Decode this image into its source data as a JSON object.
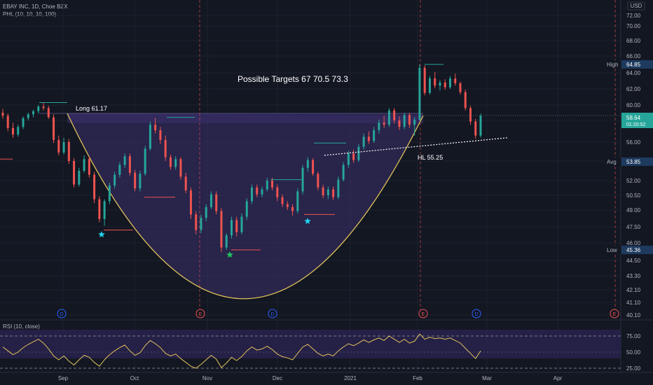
{
  "header": {
    "symbol": "EBAY INC, 1D, Choe BZX",
    "indicator": "PHL (10, 10, 10, 100)",
    "currency": "USD"
  },
  "rsi_label": "RSI (10, close)",
  "colors": {
    "background": "#131722",
    "up": "#26a69a",
    "down": "#ef5350",
    "cup": "#e2c35a",
    "cup_fill": "#3b2f6b",
    "rsi_line": "#e2c35a",
    "rsi_band": "#2a2350"
  },
  "chart_data": {
    "type": "candlestick",
    "xlabels": [
      "Sep",
      "Oct",
      "Nov",
      "Dec",
      "2021",
      "Feb",
      "Mar",
      "Apr"
    ],
    "ylim": [
      40,
      72.5
    ],
    "yticks": [
      "72.00",
      "70.00",
      "68.00",
      "66.00",
      "64.00",
      "62.00",
      "60.00",
      "58.00",
      "56.00",
      "54.00",
      "52.00",
      "50.50",
      "49.00",
      "47.50",
      "46.00",
      "44.50",
      "43.30",
      "42.10",
      "41.10",
      "40.10"
    ],
    "price_labels": {
      "high": {
        "text": "High",
        "value": "64.85"
      },
      "last": {
        "value": "58.64",
        "countdown": "01:20:52"
      },
      "avg": {
        "text": "Avg",
        "value": "53.85"
      },
      "low": {
        "text": "Low",
        "value": "45.36"
      }
    },
    "annotations": {
      "targets": "Possible Targets  67   70.5  73.3",
      "long": "Long 61.17",
      "hl": "HL 55.25"
    },
    "events": [
      "D",
      "E",
      "D",
      "E",
      "D",
      "E"
    ],
    "candles": [
      [
        59.0,
        59.5,
        58.2,
        58.6
      ],
      [
        58.6,
        58.9,
        57.0,
        57.3
      ],
      [
        57.3,
        57.8,
        56.4,
        56.7
      ],
      [
        56.7,
        57.6,
        56.5,
        57.4
      ],
      [
        57.4,
        58.5,
        57.2,
        58.3
      ],
      [
        58.3,
        59.0,
        58.0,
        58.8
      ],
      [
        58.8,
        59.4,
        58.4,
        59.2
      ],
      [
        59.2,
        60.0,
        58.9,
        59.8
      ],
      [
        59.8,
        60.3,
        59.3,
        59.6
      ],
      [
        59.6,
        59.9,
        58.2,
        58.4
      ],
      [
        58.4,
        58.8,
        55.9,
        56.2
      ],
      [
        56.2,
        56.6,
        54.6,
        54.9
      ],
      [
        54.9,
        56.4,
        54.7,
        56.0
      ],
      [
        56.0,
        56.3,
        53.7,
        54.0
      ],
      [
        54.0,
        54.3,
        51.3,
        51.6
      ],
      [
        51.6,
        53.3,
        51.4,
        53.0
      ],
      [
        53.0,
        54.6,
        52.8,
        54.2
      ],
      [
        54.2,
        54.5,
        52.3,
        52.6
      ],
      [
        52.6,
        52.9,
        49.7,
        50.1
      ],
      [
        50.1,
        50.4,
        47.9,
        48.2
      ],
      [
        48.2,
        50.1,
        47.6,
        49.9
      ],
      [
        49.9,
        51.8,
        49.6,
        51.5
      ],
      [
        51.5,
        52.9,
        51.2,
        52.6
      ],
      [
        52.6,
        53.9,
        52.3,
        53.6
      ],
      [
        53.6,
        54.8,
        53.3,
        54.5
      ],
      [
        54.5,
        54.8,
        52.5,
        52.8
      ],
      [
        52.8,
        53.1,
        50.9,
        51.2
      ],
      [
        51.2,
        53.0,
        50.9,
        52.7
      ],
      [
        52.7,
        55.6,
        52.5,
        55.3
      ],
      [
        55.3,
        57.9,
        55.1,
        57.6
      ],
      [
        57.6,
        58.3,
        56.8,
        57.1
      ],
      [
        57.1,
        57.4,
        55.8,
        56.2
      ],
      [
        56.2,
        56.6,
        54.0,
        54.4
      ],
      [
        54.4,
        54.7,
        53.1,
        53.4
      ],
      [
        53.4,
        54.5,
        53.1,
        54.2
      ],
      [
        54.2,
        54.4,
        52.1,
        52.4
      ],
      [
        52.4,
        52.8,
        50.7,
        51.0
      ],
      [
        51.0,
        51.3,
        48.2,
        48.6
      ],
      [
        48.6,
        48.9,
        46.8,
        47.2
      ],
      [
        47.2,
        48.6,
        46.9,
        48.3
      ],
      [
        48.3,
        49.6,
        48.0,
        49.3
      ],
      [
        49.3,
        50.9,
        49.1,
        50.6
      ],
      [
        50.6,
        50.9,
        48.6,
        48.9
      ],
      [
        48.9,
        49.2,
        45.2,
        45.6
      ],
      [
        45.6,
        46.9,
        45.4,
        46.7
      ],
      [
        46.7,
        48.4,
        46.4,
        48.1
      ],
      [
        48.1,
        48.4,
        46.6,
        47.0
      ],
      [
        47.0,
        48.7,
        46.8,
        48.4
      ],
      [
        48.4,
        50.2,
        48.1,
        49.9
      ],
      [
        49.9,
        51.6,
        49.6,
        51.3
      ],
      [
        51.3,
        51.6,
        50.3,
        50.6
      ],
      [
        50.6,
        51.4,
        50.3,
        51.1
      ],
      [
        51.1,
        52.3,
        50.9,
        52.0
      ],
      [
        52.0,
        52.3,
        51.0,
        51.3
      ],
      [
        51.3,
        51.6,
        49.9,
        50.3
      ],
      [
        50.3,
        50.6,
        49.3,
        49.6
      ],
      [
        49.6,
        49.9,
        49.0,
        49.3
      ],
      [
        49.3,
        49.6,
        48.5,
        48.9
      ],
      [
        48.9,
        51.2,
        48.7,
        50.9
      ],
      [
        50.9,
        53.6,
        50.6,
        53.3
      ],
      [
        53.3,
        54.4,
        52.9,
        54.1
      ],
      [
        54.1,
        54.3,
        52.5,
        52.7
      ],
      [
        52.7,
        52.9,
        51.0,
        51.3
      ],
      [
        51.3,
        51.6,
        50.2,
        50.5
      ],
      [
        50.5,
        51.4,
        50.1,
        51.1
      ],
      [
        51.1,
        51.4,
        50.0,
        50.3
      ],
      [
        50.3,
        52.4,
        50.1,
        52.1
      ],
      [
        52.1,
        53.9,
        51.9,
        53.6
      ],
      [
        53.6,
        55.1,
        53.3,
        54.8
      ],
      [
        54.8,
        55.2,
        53.8,
        54.1
      ],
      [
        54.1,
        55.8,
        53.9,
        55.5
      ],
      [
        55.5,
        56.8,
        55.2,
        56.5
      ],
      [
        56.5,
        57.0,
        55.8,
        56.1
      ],
      [
        56.1,
        57.4,
        55.9,
        57.1
      ],
      [
        57.1,
        58.1,
        56.8,
        57.8
      ],
      [
        57.8,
        58.6,
        57.3,
        57.6
      ],
      [
        57.6,
        59.6,
        57.4,
        59.3
      ],
      [
        59.3,
        59.6,
        57.7,
        58.0
      ],
      [
        58.0,
        58.5,
        57.1,
        57.4
      ],
      [
        57.4,
        59.0,
        57.2,
        58.7
      ],
      [
        58.7,
        59.0,
        57.3,
        57.6
      ],
      [
        57.6,
        58.4,
        56.6,
        58.1
      ],
      [
        58.1,
        65.0,
        58.0,
        64.6
      ],
      [
        64.6,
        64.9,
        61.2,
        61.5
      ],
      [
        61.5,
        63.6,
        61.3,
        63.3
      ],
      [
        63.3,
        64.1,
        62.1,
        62.4
      ],
      [
        62.4,
        63.1,
        61.8,
        62.8
      ],
      [
        62.8,
        63.2,
        61.9,
        62.2
      ],
      [
        62.2,
        63.6,
        62.0,
        63.3
      ],
      [
        63.3,
        63.9,
        62.4,
        62.7
      ],
      [
        62.7,
        62.9,
        61.3,
        61.6
      ],
      [
        61.6,
        61.9,
        59.3,
        59.6
      ],
      [
        59.6,
        59.9,
        57.6,
        57.9
      ],
      [
        57.9,
        58.2,
        56.3,
        56.6
      ],
      [
        56.6,
        58.9,
        56.4,
        58.6
      ]
    ],
    "rsi": {
      "levels": [
        "75.00",
        "50.00",
        "25.00"
      ],
      "values": [
        58,
        52,
        46,
        50,
        57,
        62,
        66,
        70,
        64,
        55,
        44,
        38,
        44,
        36,
        30,
        38,
        45,
        42,
        34,
        28,
        38,
        46,
        52,
        57,
        61,
        52,
        45,
        49,
        60,
        68,
        63,
        57,
        48,
        44,
        47,
        40,
        34,
        28,
        25,
        31,
        38,
        45,
        39,
        26,
        33,
        42,
        37,
        43,
        52,
        58,
        53,
        55,
        59,
        54,
        47,
        43,
        41,
        38,
        48,
        58,
        62,
        55,
        48,
        44,
        47,
        44,
        52,
        58,
        63,
        60,
        64,
        69,
        65,
        69,
        72,
        68,
        75,
        70,
        65,
        70,
        64,
        67,
        78,
        70,
        73,
        71,
        72,
        70,
        72,
        68,
        64,
        56,
        48,
        40,
        52
      ]
    }
  }
}
